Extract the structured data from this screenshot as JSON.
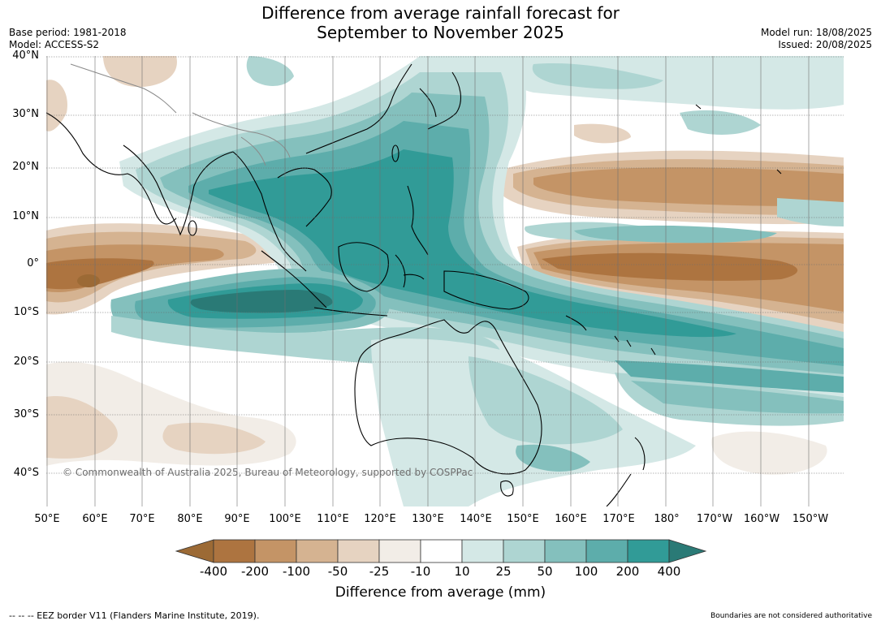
{
  "title_line1": "Difference from average rainfall forecast for",
  "title_line2": "September to November 2025",
  "base_period": "Base period: 1981-2018",
  "model": "Model: ACCESS-S2",
  "model_run": "Model run: 18/08/2025",
  "issued": "Issued: 20/08/2025",
  "lat_labels": [
    "40°N",
    "30°N",
    "20°N",
    "10°N",
    "0°",
    "10°S",
    "20°S",
    "30°S",
    "40°S"
  ],
  "lon_labels": [
    "50°E",
    "60°E",
    "70°E",
    "80°E",
    "90°E",
    "100°E",
    "110°E",
    "120°E",
    "130°E",
    "140°E",
    "150°E",
    "160°E",
    "170°E",
    "180°",
    "170°W",
    "160°W",
    "150°W"
  ],
  "copyright": "© Commonwealth of Australia 2025, Bureau of Meteorology, supported by COSPPac",
  "colorbar": {
    "labels": [
      "-400",
      "-200",
      "-100",
      "-50",
      "-25",
      "-10",
      "10",
      "25",
      "50",
      "100",
      "200",
      "400"
    ],
    "title": "Difference from average (mm)",
    "colors": [
      "#9c6a35",
      "#ad7440",
      "#c49466",
      "#d5b391",
      "#e6d3c1",
      "#f2ede7",
      "#ffffff",
      "#d4e8e6",
      "#aed5d2",
      "#84c0bd",
      "#5dadab",
      "#319b97",
      "#2a7a76"
    ]
  },
  "footer_left": "--  --  -- EEZ border V11 (Flanders Marine Institute, 2019).",
  "footer_right": "Boundaries are not considered authoritative"
}
